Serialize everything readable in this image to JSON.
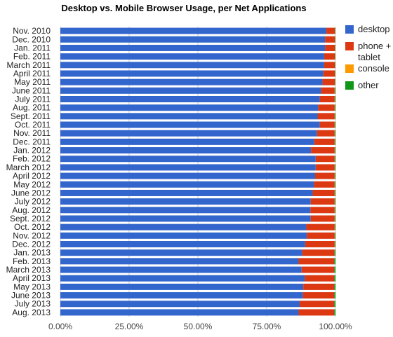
{
  "chart_data": {
    "type": "bar",
    "orientation": "horizontal",
    "stacked": true,
    "title": "Desktop vs. Mobile Browser Usage, per Net Applications",
    "xlabel": "",
    "ylabel": "",
    "xlim": [
      0,
      100
    ],
    "x_ticks": [
      "0.00%",
      "25.00%",
      "50.00%",
      "75.00%",
      "100.00%"
    ],
    "grid": true,
    "legend_position": "right",
    "categories": [
      "Nov. 2010",
      "Dec. 2010",
      "Jan. 2011",
      "Feb. 2011",
      "March 2011",
      "April 2011",
      "May 2011",
      "June 2011",
      "July 2011",
      "Aug. 2011",
      "Sept. 2011",
      "Oct. 2011",
      "Nov. 2011",
      "Dec. 2011",
      "Jan. 2012",
      "Feb. 2012",
      "March 2012",
      "April 2012",
      "May 2012",
      "June 2012",
      "July 2012",
      "Aug. 2012",
      "Sept. 2012",
      "Oct. 2012",
      "Nov. 2012",
      "Dec. 2012",
      "Jan. 2013",
      "Feb. 2013",
      "March 2013",
      "April 2013",
      "May 2013",
      "June 2013",
      "July 2013",
      "Aug. 2013"
    ],
    "series": [
      {
        "name": "desktop",
        "color": "#3366cc",
        "values": [
          96.7,
          96.2,
          96.2,
          95.9,
          95.9,
          95.6,
          95.3,
          94.8,
          94.3,
          93.7,
          93.5,
          94.3,
          93.3,
          92.3,
          91.1,
          92.8,
          92.8,
          92.6,
          92.2,
          91.7,
          91.0,
          90.9,
          91.0,
          89.4,
          89.6,
          89.0,
          87.9,
          86.6,
          87.7,
          88.8,
          88.3,
          88.2,
          87.0,
          86.6
        ]
      },
      {
        "name": "phone + tablet",
        "color": "#dc3912",
        "values": [
          3.1,
          3.6,
          3.6,
          3.9,
          3.9,
          4.2,
          4.5,
          4.9,
          5.4,
          6.0,
          6.2,
          5.4,
          6.4,
          7.4,
          8.6,
          6.9,
          6.9,
          7.1,
          7.5,
          8.0,
          8.7,
          8.8,
          8.7,
          10.3,
          10.1,
          10.7,
          11.7,
          12.9,
          11.8,
          10.7,
          11.2,
          11.3,
          12.5,
          12.9
        ]
      },
      {
        "name": "console",
        "color": "#ff9900",
        "values": [
          0.05,
          0.05,
          0.05,
          0.05,
          0.05,
          0.05,
          0.05,
          0.05,
          0.05,
          0.05,
          0.05,
          0.05,
          0.05,
          0.05,
          0.05,
          0.05,
          0.05,
          0.05,
          0.05,
          0.05,
          0.05,
          0.05,
          0.05,
          0.05,
          0.05,
          0.05,
          0.05,
          0.05,
          0.05,
          0.05,
          0.05,
          0.05,
          0.05,
          0.05
        ]
      },
      {
        "name": "other",
        "color": "#109618",
        "values": [
          0.15,
          0.15,
          0.15,
          0.15,
          0.15,
          0.15,
          0.15,
          0.25,
          0.25,
          0.25,
          0.25,
          0.25,
          0.25,
          0.25,
          0.25,
          0.25,
          0.25,
          0.25,
          0.25,
          0.25,
          0.25,
          0.25,
          0.25,
          0.25,
          0.25,
          0.25,
          0.35,
          0.45,
          0.45,
          0.45,
          0.45,
          0.45,
          0.45,
          0.45
        ]
      }
    ]
  }
}
